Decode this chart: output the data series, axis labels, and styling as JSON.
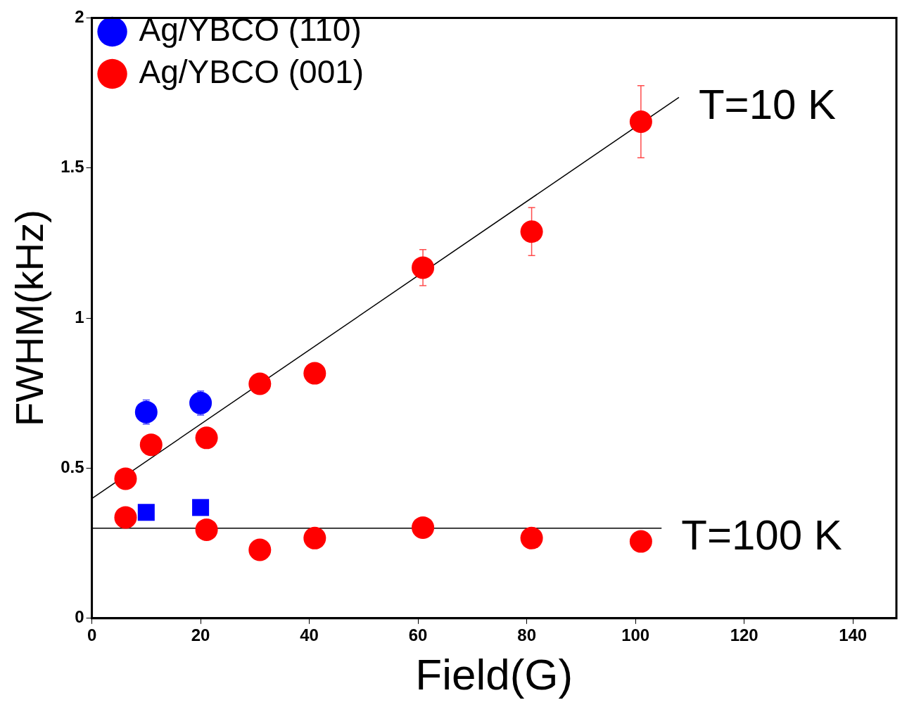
{
  "chart_data": {
    "type": "scatter",
    "xlabel": "Field(G)",
    "ylabel": "FWHM(kHz)",
    "xlim": [
      0,
      148
    ],
    "ylim": [
      0,
      2
    ],
    "xticks": [
      0,
      20,
      40,
      60,
      80,
      100,
      120,
      140
    ],
    "yticks": [
      0,
      0.5,
      1,
      1.5,
      2
    ],
    "legend": "top left",
    "marker": "circle",
    "series": [
      {
        "name": "Ag/YBCO (110)",
        "color": "#0000ff",
        "x": [
          10,
          20
        ],
        "values": [
          0.687,
          0.717
        ],
        "errors": [
          0.04,
          0.04
        ]
      },
      {
        "color": "#0000ff",
        "marker": "square",
        "x": [
          10,
          20
        ],
        "values": [
          0.353,
          0.369
        ]
      },
      {
        "name": "Ag/YBCO (001)",
        "color": "#ff0000",
        "x": [
          6.2,
          10.9,
          21.1,
          30.9,
          41,
          60.9,
          80.9,
          101,
          6.2,
          21.1,
          30.9,
          41,
          60.9,
          80.9,
          101
        ],
        "values": [
          0.465,
          0.578,
          0.601,
          0.781,
          0.816,
          1.168,
          1.288,
          1.654,
          0.336,
          0.295,
          0.228,
          0.267,
          0.302,
          0.267,
          0.256
        ],
        "errors": [
          null,
          null,
          null,
          null,
          0.02,
          0.06,
          0.08,
          0.12,
          null,
          null,
          null,
          null,
          null,
          null,
          null
        ]
      },
      {
        "type": "line",
        "color": "#000000",
        "marker": "none",
        "x": [
          0,
          108
        ],
        "values": [
          0.399,
          1.735
        ]
      },
      {
        "type": "line",
        "color": "#000000",
        "marker": "none",
        "x": [
          0,
          104.8
        ],
        "values": [
          0.3,
          0.3
        ]
      }
    ],
    "annotations": [
      "T=10 K",
      "T=100 K"
    ]
  }
}
